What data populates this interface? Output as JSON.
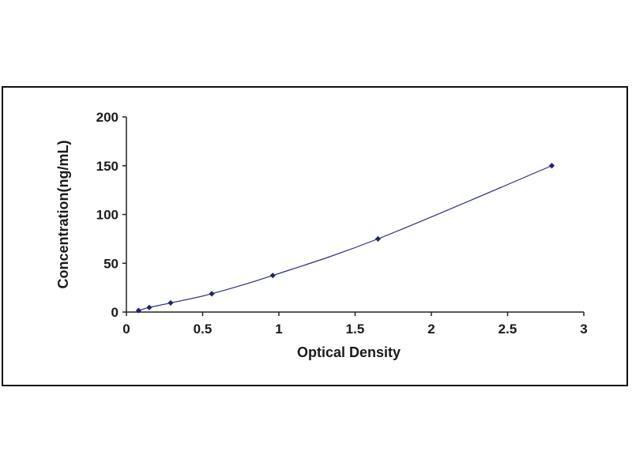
{
  "chart_data": {
    "type": "scatter",
    "title": "",
    "xlabel": "Optical Density",
    "ylabel": "Concentration(ng/mL)",
    "xlim": [
      0,
      3
    ],
    "ylim": [
      0,
      200
    ],
    "xticks": [
      0,
      0.5,
      1,
      1.5,
      2,
      2.5,
      3
    ],
    "xtick_labels": [
      "0",
      "0.5",
      "1",
      "1.5",
      "2",
      "2.5",
      "3"
    ],
    "yticks": [
      0,
      50,
      100,
      150,
      200
    ],
    "ytick_labels": [
      "0",
      "50",
      "100",
      "150",
      "200"
    ],
    "grid": false,
    "legend": "none",
    "trendline": "smooth curve through points",
    "series": [
      {
        "x": [
          0.08,
          0.15,
          0.29,
          0.56,
          0.96,
          1.65,
          2.79
        ],
        "y": [
          1.56,
          4.69,
          9.38,
          18.75,
          37.5,
          75,
          150
        ]
      }
    ],
    "colors": {
      "curve": "#2b2f7e",
      "marker": "#1f2470",
      "axis": "#222222"
    }
  }
}
